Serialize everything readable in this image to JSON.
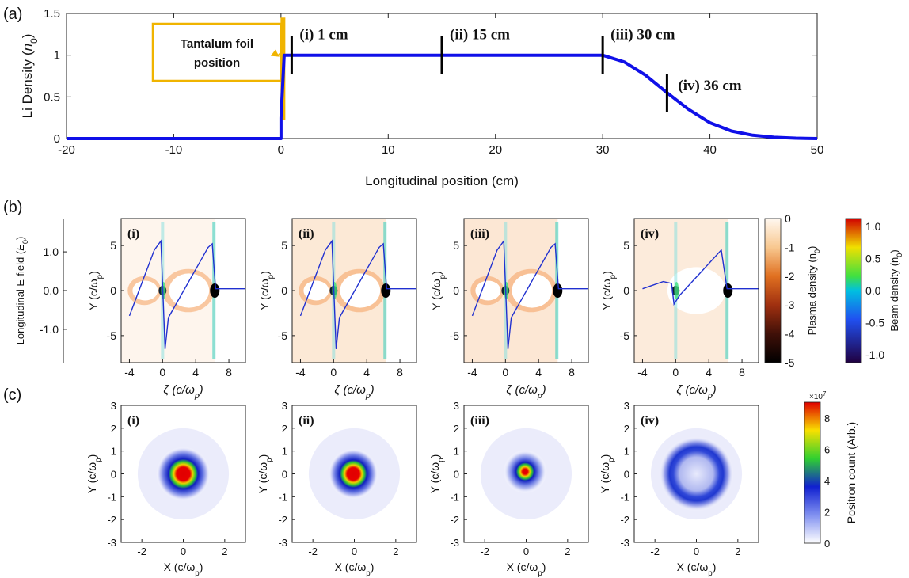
{
  "panel_labels": {
    "a": "(a)",
    "b": "(b)",
    "c": "(c)"
  },
  "colors": {
    "profile": "#1010e8",
    "foil": "#f0b400",
    "field_line": "#2030d0"
  },
  "chart_data": [
    {
      "id": "a",
      "type": "line",
      "xlabel": "Longitudinal position  (cm)",
      "ylabel": "Li Density (",
      "ylabel_unit": "n",
      "ylabel_sub": "0",
      "xlim": [
        -20,
        50
      ],
      "ylim": [
        0,
        1.5
      ],
      "xticks": [
        -20,
        -10,
        0,
        10,
        20,
        30,
        40,
        50
      ],
      "yticks": [
        0,
        0.5,
        1,
        1.5
      ],
      "series": [
        {
          "x": [
            -20,
            0,
            0,
            0.3,
            30,
            32,
            34,
            36,
            38,
            40,
            42,
            44,
            46,
            48,
            50
          ],
          "y": [
            0,
            0,
            0.25,
            1,
            1,
            0.92,
            0.76,
            0.55,
            0.35,
            0.19,
            0.09,
            0.04,
            0.015,
            0.005,
            0
          ]
        }
      ],
      "markers": [
        {
          "x": 1,
          "label": "(i) 1 cm"
        },
        {
          "x": 15,
          "label": "(ii) 15 cm"
        },
        {
          "x": 30,
          "label": "(iii) 30 cm"
        },
        {
          "x": 36,
          "label": "(iv) 36 cm"
        }
      ],
      "annotation": {
        "lines": [
          "Tantalum foil",
          "position"
        ],
        "x": 0
      }
    },
    {
      "id": "b",
      "type": "heatmap",
      "xlabel": "ζ (c/ω",
      "xlabel_sub": "p",
      "ylabel": "Y (c/ω",
      "ylabel_sub": "p",
      "left_axis_label": "Longitudinal E-field (",
      "left_axis_unit": "E",
      "left_axis_sub": "0",
      "xlim": [
        -5,
        10
      ],
      "ylim": [
        -8,
        8
      ],
      "xticks": [
        -4,
        0,
        4,
        8
      ],
      "yticks": [
        -5,
        0,
        5
      ],
      "field_ticks": [
        "1.0",
        "0.0",
        "-1.0"
      ],
      "field_tick_values": [
        1.0,
        0.0,
        -1.0
      ],
      "subplots": [
        "(i)",
        "(ii)",
        "(iii)",
        "(iv)"
      ],
      "plasma_colorbar": {
        "label": "Plasma density (",
        "unit": "n",
        "sub": "0",
        "ticks": [
          "0",
          "-1",
          "-2",
          "-3",
          "-4",
          "-5"
        ]
      },
      "beam_colorbar": {
        "label": "Beam density (",
        "unit": "n",
        "sub": "0",
        "ticks": [
          "1.0",
          "0.5",
          "0.0",
          "-0.5",
          "-1.0"
        ]
      }
    },
    {
      "id": "c",
      "type": "heatmap",
      "xlabel": "X (c/ω",
      "xlabel_sub": "p",
      "ylabel": "Y (c/ω",
      "ylabel_sub": "p",
      "xlim": [
        -3,
        3
      ],
      "ylim": [
        -3,
        3
      ],
      "xticks": [
        -2,
        0,
        2
      ],
      "yticks": [
        -3,
        -2,
        -1,
        0,
        1,
        2,
        3
      ],
      "subplots": [
        "(i)",
        "(ii)",
        "(iii)",
        "(iv)"
      ],
      "colorbar": {
        "label": "Positron count (Arb.)",
        "exponent": "×10",
        "exponent_power": "7",
        "ticks": [
          "8",
          "6",
          "4",
          "2",
          "0"
        ],
        "range": [
          0,
          9
        ]
      }
    }
  ]
}
